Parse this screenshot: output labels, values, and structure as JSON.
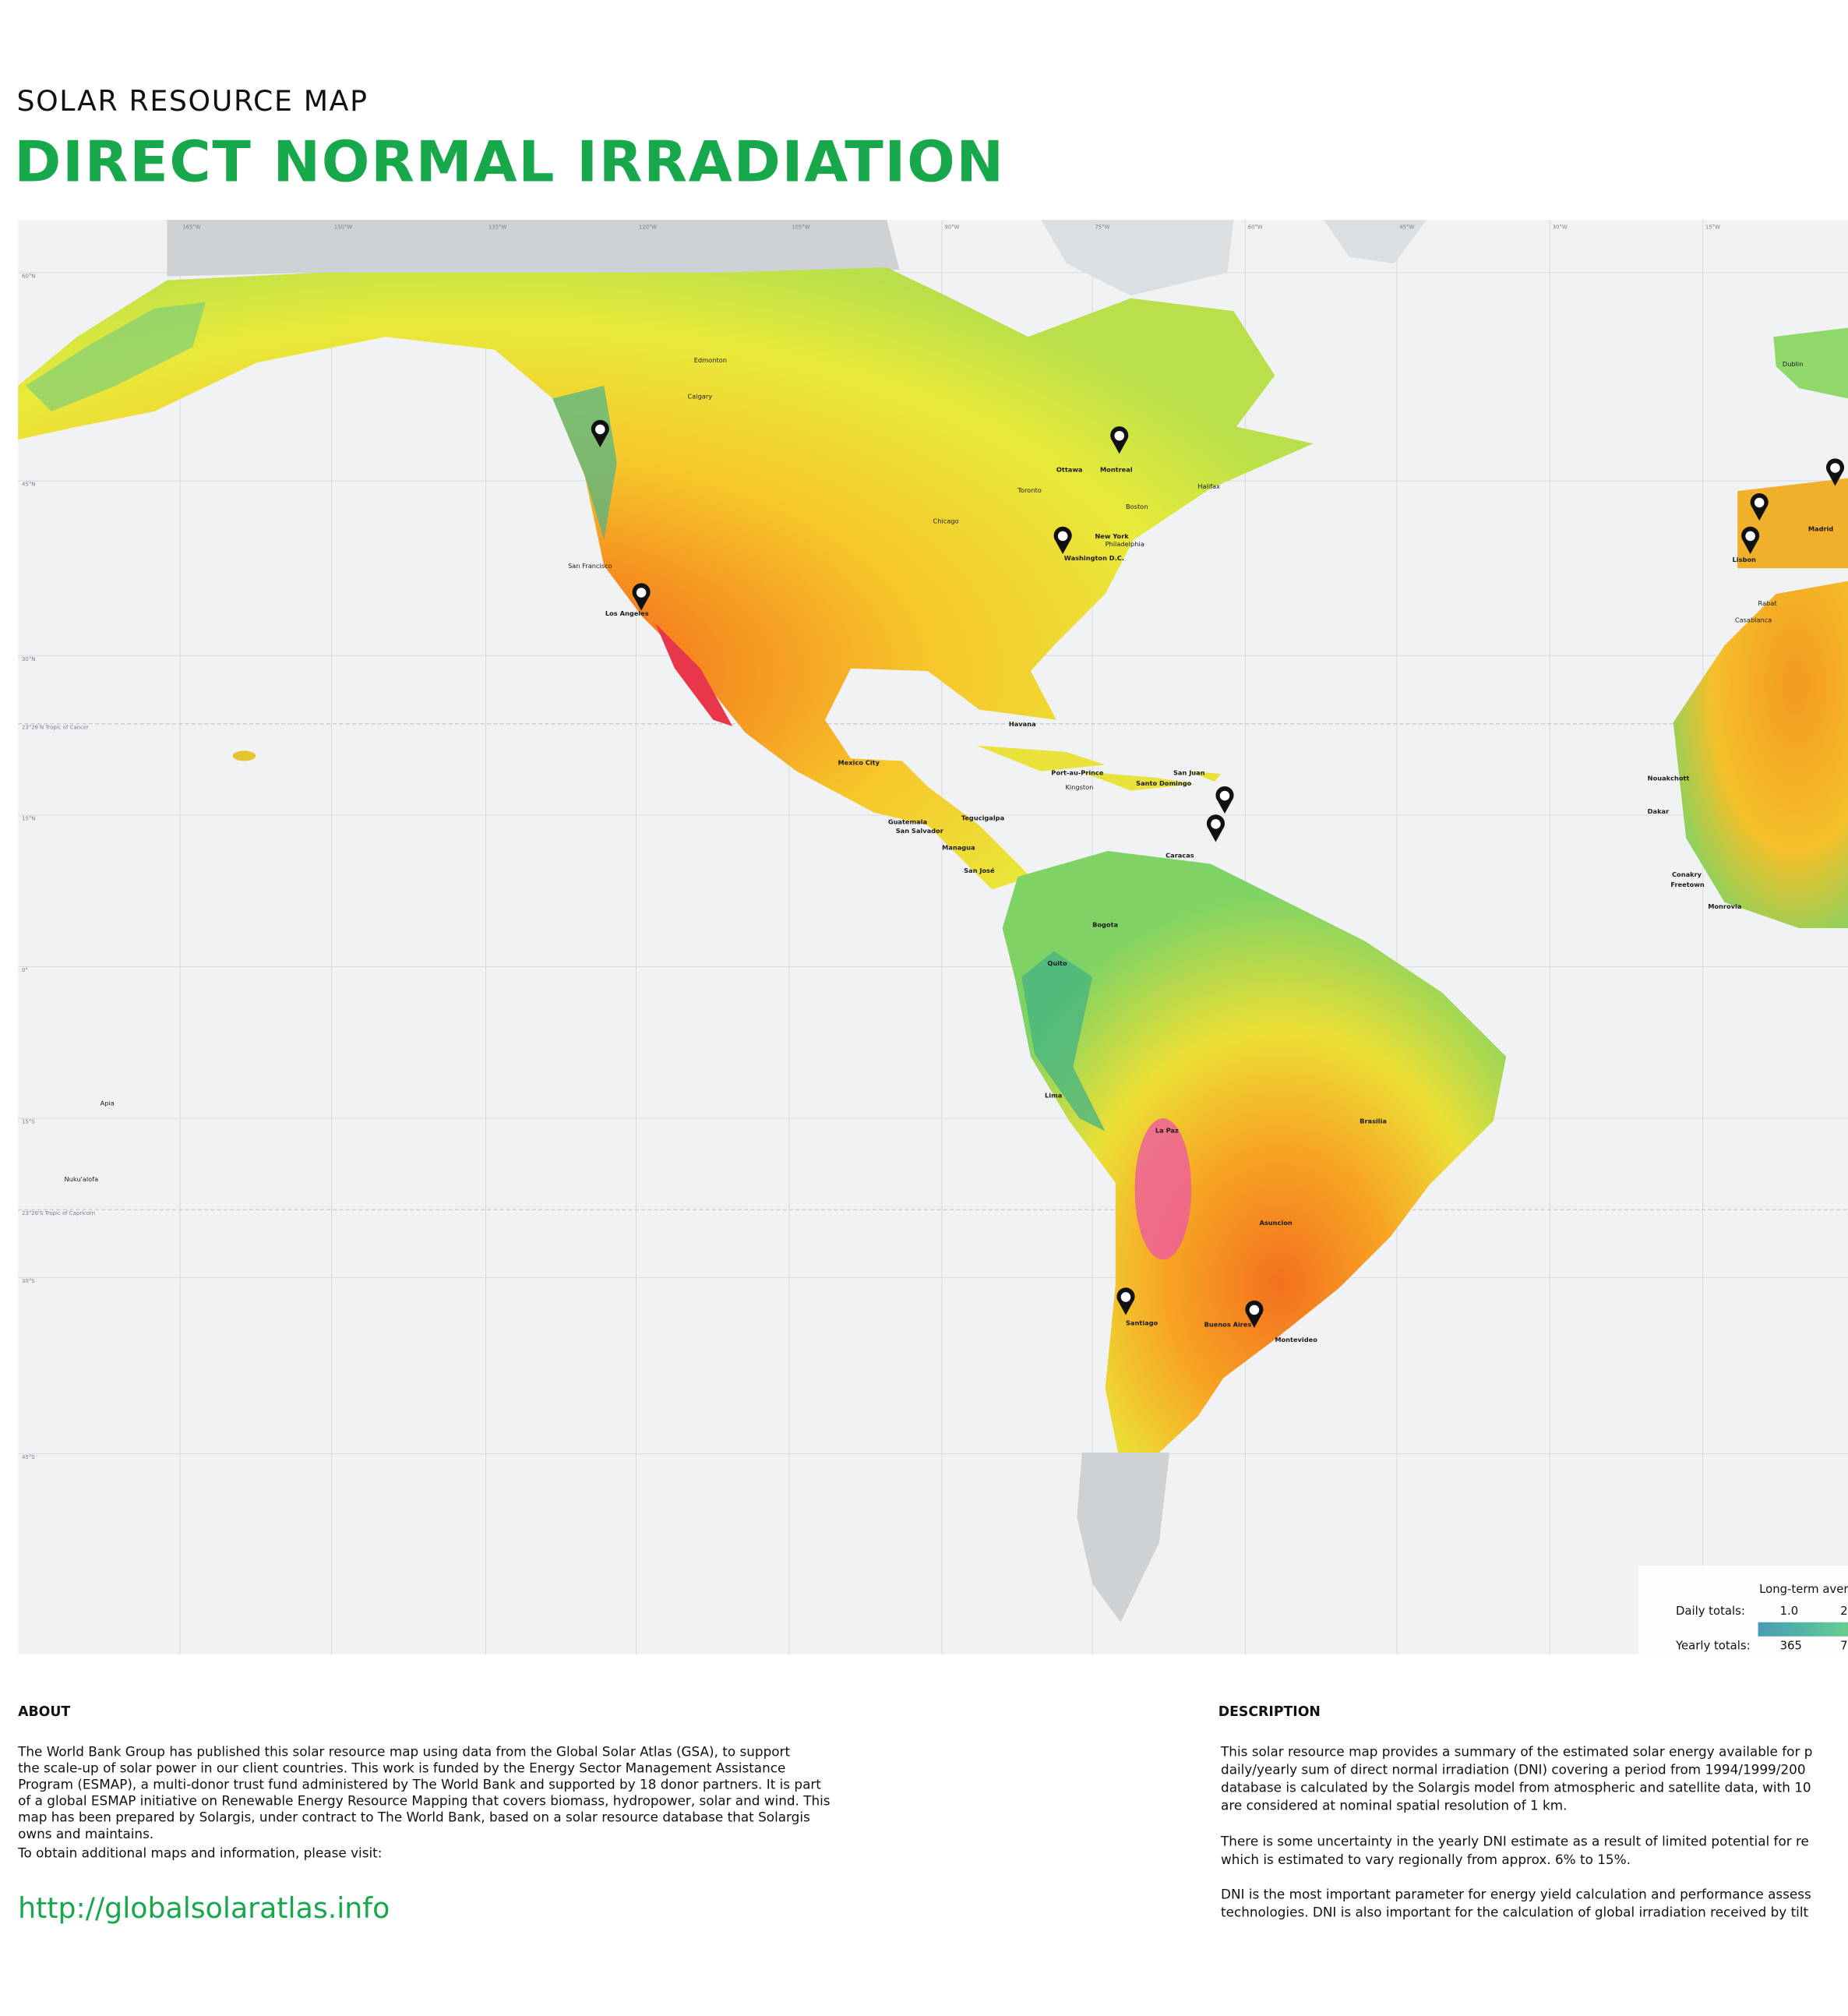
{
  "header": {
    "kicker": "SOLAR RESOURCE MAP",
    "title": "DIRECT NORMAL IRRADIATION"
  },
  "map": {
    "longitude_labels": [
      "165°W",
      "150°W",
      "135°W",
      "120°W",
      "105°W",
      "90°W",
      "75°W",
      "60°W",
      "45°W",
      "30°W",
      "15°W"
    ],
    "latitude_labels": [
      "60°N",
      "45°N",
      "30°N",
      "23°26'N  Tropic of Cancer",
      "15°N",
      "0°",
      "15°S",
      "23°26'S  Tropic of Capricorn",
      "30°S",
      "45°S"
    ],
    "major_cities": [
      "Ottawa",
      "Montreal",
      "New York",
      "Washington D.C.",
      "Los Angeles",
      "Havana",
      "Mexico City",
      "Port-au-Prince",
      "Santo Domingo",
      "San Juan",
      "Guatemala",
      "San Salvador",
      "Tegucigalpa",
      "Managua",
      "San José",
      "Caracas",
      "Bogota",
      "Quito",
      "Lima",
      "La Paz",
      "Brasilia",
      "Asuncion",
      "Santiago",
      "Buenos Aires",
      "Montevideo",
      "Lisbon",
      "Madrid",
      "Nouakchott",
      "Dakar",
      "Conakry",
      "Freetown",
      "Monrovia"
    ],
    "minor_cities": [
      "San Francisco",
      "Kingston",
      "Dublin",
      "Rabat",
      "Casablanca",
      "Apia",
      "Nuku'alofa",
      "Philadelphia",
      "Chicago",
      "Edmonton",
      "Calgary",
      "Toronto",
      "Halifax",
      "Boston"
    ]
  },
  "legend": {
    "title": "Long-term aver",
    "daily_label": "Daily totals:",
    "daily_values": [
      "1.0",
      "2"
    ],
    "yearly_label": "Yearly totals:",
    "yearly_values": [
      "365",
      "7"
    ]
  },
  "about": {
    "heading": "ABOUT",
    "lines": [
      "The World Bank Group has published this solar resource map using data from the Global Solar Atlas (GSA), to support",
      "the scale-up of solar power in our client countries. This work is funded by the Energy Sector Management Assistance",
      "Program (ESMAP), a multi-donor trust fund administered by The World Bank and supported by 18 donor partners. It is part",
      "of a global ESMAP initiative on Renewable Energy Resource Mapping that covers biomass, hydropower, solar and wind. This",
      "map has been prepared by Solargis, under contract to The World Bank, based on a solar resource database that Solargis",
      "owns and maintains."
    ],
    "visit": "To obtain additional maps and information, please visit:",
    "url": "http://globalsolaratlas.info"
  },
  "description": {
    "heading": "DESCRIPTION",
    "paragraphs": [
      [
        "This solar resource map provides a summary of the estimated solar energy available for p",
        "daily/yearly sum of direct normal irradiation (DNI) covering a period from 1994/1999/200",
        "database is calculated by the Solargis model from atmospheric and satellite data, with 10",
        "are considered at nominal spatial resolution of 1 km."
      ],
      [
        "There is some uncertainty in the yearly DNI estimate as a result of limited potential for re",
        "which is estimated to vary regionally from approx. 6% to 15%."
      ],
      [
        "DNI is the most important parameter for energy yield calculation and performance assess",
        "technologies. DNI is also important for the calculation of global irradiation received by tilt"
      ]
    ]
  }
}
